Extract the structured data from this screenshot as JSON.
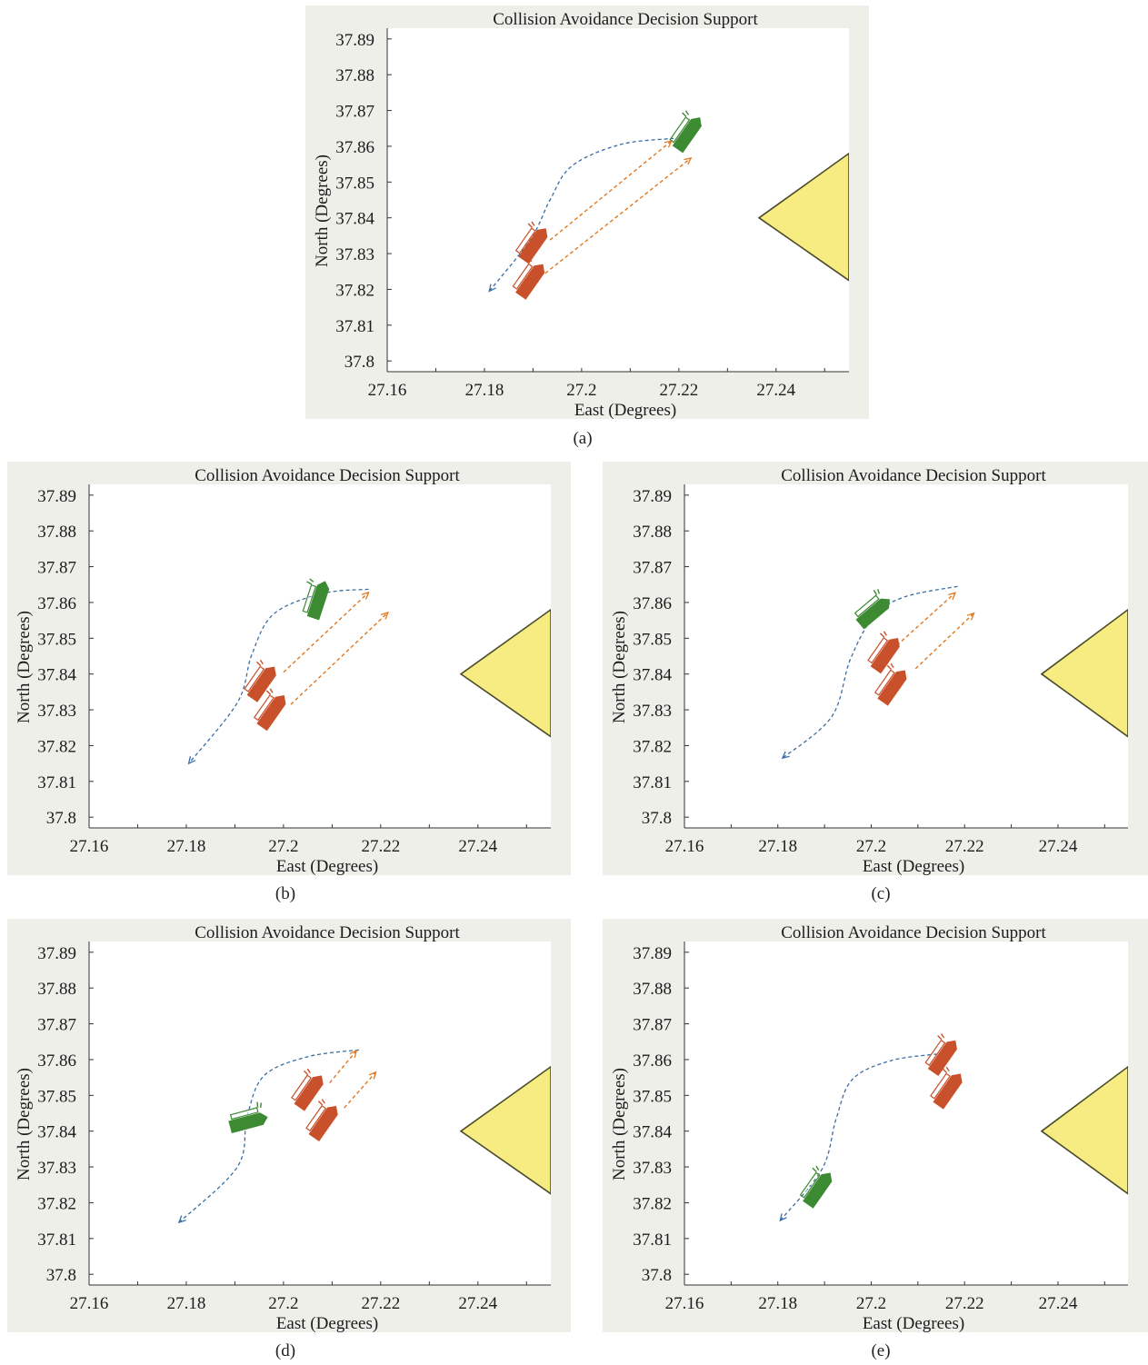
{
  "colors": {
    "frame_bg": "#efefea",
    "plot_bg": "#ffffff",
    "island_fill": "#f6ec82",
    "island_stroke": "#4a4a2a",
    "own_ship": "#3c8a32",
    "target_ship": "#c8502a",
    "own_path": "#3a6ea5",
    "target_path": "#e07820"
  },
  "panels": [
    {
      "caption": "(a)",
      "chart_data": {
        "type": "scatter",
        "title": "Collision Avoidance Decision Support",
        "xlabel": "East (Degrees)",
        "ylabel": "North (Degrees)",
        "xlim": [
          27.16,
          27.255
        ],
        "ylim": [
          37.797,
          37.893
        ],
        "xticks": [
          "27.16",
          "27.18",
          "27.2",
          "27.22",
          "27.24"
        ],
        "yticks": [
          "37.8",
          "37.81",
          "37.82",
          "37.83",
          "37.84",
          "37.85",
          "37.86",
          "37.87",
          "37.88",
          "37.89"
        ],
        "island": [
          [
            27.2365,
            37.84
          ],
          [
            27.255,
            37.858
          ],
          [
            27.255,
            37.8225
          ]
        ],
        "own_ship": {
          "x": 27.222,
          "y": 37.8635,
          "heading": 55
        },
        "own_path": [
          [
            27.219,
            37.8622
          ],
          [
            27.208,
            37.8605
          ],
          [
            27.198,
            37.8545
          ],
          [
            27.1935,
            37.845
          ],
          [
            27.1895,
            37.834
          ],
          [
            27.181,
            37.8195
          ]
        ],
        "target_ships": [
          {
            "x": 27.1903,
            "y": 37.8325,
            "heading": 55
          },
          {
            "x": 27.1897,
            "y": 37.8225,
            "heading": 55
          }
        ],
        "target_paths": [
          [
            [
              27.1935,
              37.8338
            ],
            [
              27.2185,
              37.8615
            ]
          ],
          [
            [
              27.1925,
              37.8245
            ],
            [
              27.2225,
              37.8567
            ]
          ]
        ]
      }
    },
    {
      "caption": "(b)",
      "chart_data": {
        "type": "scatter",
        "title": "Collision Avoidance Decision Support",
        "xlabel": "East (Degrees)",
        "ylabel": "North (Degrees)",
        "xlim": [
          27.16,
          27.255
        ],
        "ylim": [
          37.797,
          37.893
        ],
        "xticks": [
          "27.16",
          "27.18",
          "27.2",
          "27.22",
          "27.24"
        ],
        "yticks": [
          "37.8",
          "37.81",
          "37.82",
          "37.83",
          "37.84",
          "37.85",
          "37.86",
          "37.87",
          "37.88",
          "37.89"
        ],
        "island": [
          [
            27.2365,
            37.84
          ],
          [
            27.255,
            37.858
          ],
          [
            27.255,
            37.8225
          ]
        ],
        "own_ship": {
          "x": 27.2073,
          "y": 37.8607,
          "heading": 72
        },
        "own_path": [
          [
            27.2175,
            37.8637
          ],
          [
            27.208,
            37.8625
          ],
          [
            27.198,
            37.8568
          ],
          [
            27.1935,
            37.8455
          ],
          [
            27.1905,
            37.832
          ],
          [
            27.1805,
            37.815
          ]
        ],
        "target_ships": [
          {
            "x": 27.1958,
            "y": 37.8375,
            "heading": 55
          },
          {
            "x": 27.1978,
            "y": 37.8295,
            "heading": 55
          }
        ],
        "target_paths": [
          [
            [
              27.2,
              37.8405
            ],
            [
              27.2175,
              37.8628
            ]
          ],
          [
            [
              27.2015,
              37.8315
            ],
            [
              27.2215,
              37.8572
            ]
          ]
        ]
      }
    },
    {
      "caption": "(c)",
      "chart_data": {
        "type": "scatter",
        "title": "Collision Avoidance Decision Support",
        "xlabel": "East (Degrees)",
        "ylabel": "North (Degrees)",
        "xlim": [
          27.16,
          27.255
        ],
        "ylim": [
          37.797,
          37.893
        ],
        "xticks": [
          "27.16",
          "27.18",
          "27.2",
          "27.22",
          "27.24"
        ],
        "yticks": [
          "37.8",
          "37.81",
          "37.82",
          "37.83",
          "37.84",
          "37.85",
          "37.86",
          "37.87",
          "37.88",
          "37.89"
        ],
        "island": [
          [
            27.2365,
            37.84
          ],
          [
            27.255,
            37.858
          ],
          [
            27.255,
            37.8225
          ]
        ],
        "own_ship": {
          "x": 27.2007,
          "y": 37.8573,
          "heading": 40
        },
        "own_path": [
          [
            27.2185,
            37.8645
          ],
          [
            27.207,
            37.8615
          ],
          [
            27.2005,
            37.856
          ],
          [
            27.1955,
            37.844
          ],
          [
            27.1915,
            37.828
          ],
          [
            27.181,
            37.8165
          ]
        ],
        "target_ships": [
          {
            "x": 27.2033,
            "y": 37.8455,
            "heading": 55
          },
          {
            "x": 27.2048,
            "y": 37.8365,
            "heading": 55
          }
        ],
        "target_paths": [
          [
            [
              27.2055,
              37.848
            ],
            [
              27.218,
              37.8627
            ]
          ],
          [
            [
              27.2095,
              37.8415
            ],
            [
              27.222,
              37.857
            ]
          ]
        ]
      }
    },
    {
      "caption": "(d)",
      "chart_data": {
        "type": "scatter",
        "title": "Collision Avoidance Decision Support",
        "xlabel": "East (Degrees)",
        "ylabel": "North (Degrees)",
        "xlim": [
          27.16,
          27.255
        ],
        "ylim": [
          37.797,
          37.893
        ],
        "xticks": [
          "27.16",
          "27.18",
          "27.2",
          "27.22",
          "27.24"
        ],
        "yticks": [
          "37.8",
          "37.81",
          "37.82",
          "37.83",
          "37.84",
          "37.85",
          "37.86",
          "37.87",
          "37.88",
          "37.89"
        ],
        "island": [
          [
            27.2365,
            37.84
          ],
          [
            27.255,
            37.858
          ],
          [
            27.255,
            37.8225
          ]
        ],
        "own_ship": {
          "x": 27.1928,
          "y": 37.8425,
          "heading": 15
        },
        "own_path": [
          [
            27.2155,
            37.8627
          ],
          [
            27.205,
            37.8608
          ],
          [
            27.196,
            37.8555
          ],
          [
            27.1925,
            37.844
          ],
          [
            27.1905,
            37.83
          ],
          [
            27.1785,
            37.8145
          ]
        ],
        "target_ships": [
          {
            "x": 27.2055,
            "y": 37.851,
            "heading": 55
          },
          {
            "x": 27.2085,
            "y": 37.8425,
            "heading": 55
          }
        ],
        "target_paths": [
          [
            [
              27.2095,
              37.8535
            ],
            [
              27.215,
              37.8625
            ]
          ],
          [
            [
              27.2125,
              37.8465
            ],
            [
              27.219,
              37.8565
            ]
          ]
        ]
      }
    },
    {
      "caption": "(e)",
      "chart_data": {
        "type": "scatter",
        "title": "Collision Avoidance Decision Support",
        "xlabel": "East (Degrees)",
        "ylabel": "North (Degrees)",
        "xlim": [
          27.16,
          27.255
        ],
        "ylim": [
          37.797,
          37.893
        ],
        "xticks": [
          "27.16",
          "27.18",
          "27.2",
          "27.22",
          "27.24"
        ],
        "yticks": [
          "37.8",
          "37.81",
          "37.82",
          "37.83",
          "37.84",
          "37.85",
          "37.86",
          "37.87",
          "37.88",
          "37.89"
        ],
        "island": [
          [
            27.2365,
            37.84
          ],
          [
            27.255,
            37.858
          ],
          [
            27.255,
            37.8225
          ]
        ],
        "own_ship": {
          "x": 27.1888,
          "y": 37.8238,
          "heading": 55
        },
        "own_path": [
          [
            27.2155,
            37.8617
          ],
          [
            27.2045,
            37.8598
          ],
          [
            27.196,
            37.8545
          ],
          [
            27.1925,
            37.8435
          ],
          [
            27.1895,
            37.8295
          ],
          [
            27.1805,
            37.815
          ]
        ],
        "target_ships": [
          {
            "x": 27.2156,
            "y": 37.8608,
            "heading": 55
          },
          {
            "x": 27.2167,
            "y": 37.8515,
            "heading": 55
          }
        ],
        "target_paths": []
      }
    }
  ]
}
